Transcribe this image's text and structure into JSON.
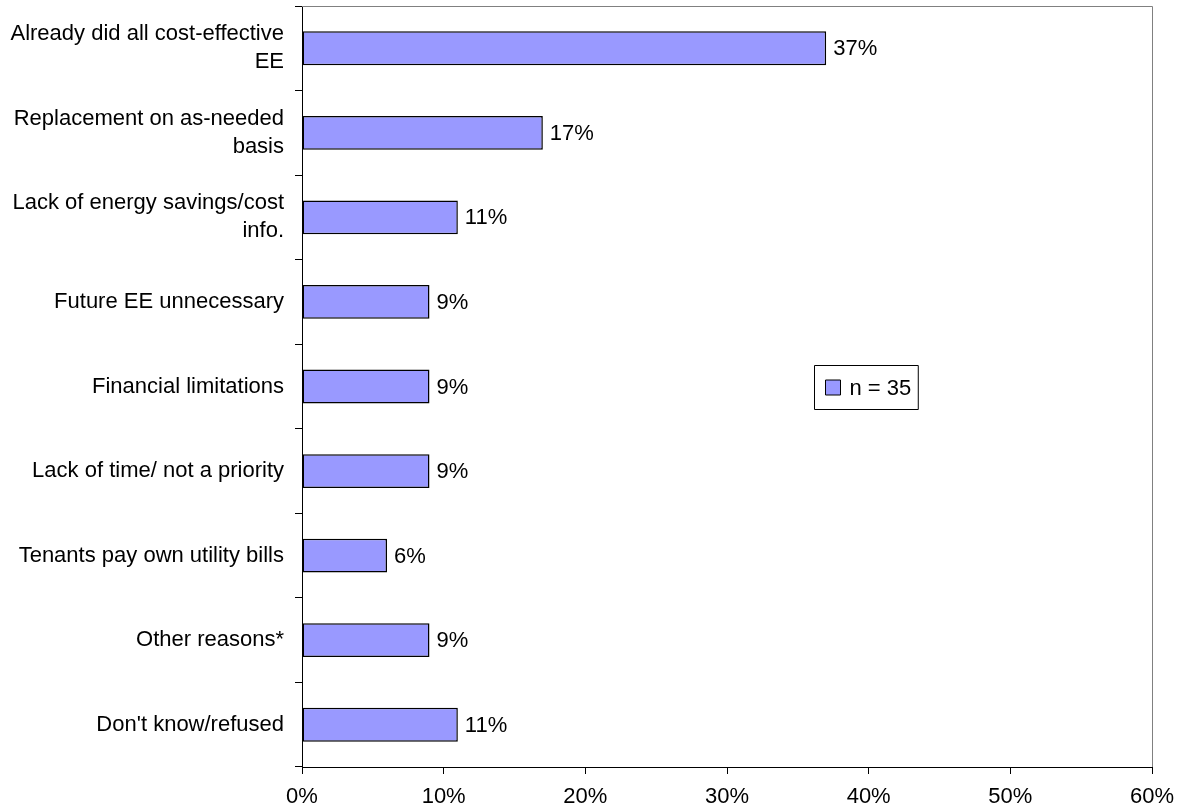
{
  "chart_data": {
    "type": "bar",
    "orientation": "horizontal",
    "categories": [
      "Already did all cost-effective EE",
      "Replacement on as-needed basis",
      "Lack of energy savings/cost info.",
      "Future EE unnecessary",
      "Financial limitations",
      "Lack of time/ not a priority",
      "Tenants pay own utility bills",
      "Other reasons*",
      "Don't know/refused"
    ],
    "series": [
      {
        "name": "n = 35",
        "color": "#9999ff",
        "values": [
          37,
          17,
          11,
          9,
          9,
          9,
          6,
          9,
          11
        ],
        "value_labels": [
          "37%",
          "17%",
          "11%",
          "9%",
          "9%",
          "9%",
          "6%",
          "9%",
          "11%"
        ]
      }
    ],
    "xlim": [
      0,
      60
    ],
    "xticks": [
      {
        "value": 0,
        "label": "0%"
      },
      {
        "value": 10,
        "label": "10%"
      },
      {
        "value": 20,
        "label": "20%"
      },
      {
        "value": 30,
        "label": "30%"
      },
      {
        "value": 40,
        "label": "40%"
      },
      {
        "value": 50,
        "label": "50%"
      },
      {
        "value": 60,
        "label": "60%"
      }
    ],
    "legend": "right"
  }
}
